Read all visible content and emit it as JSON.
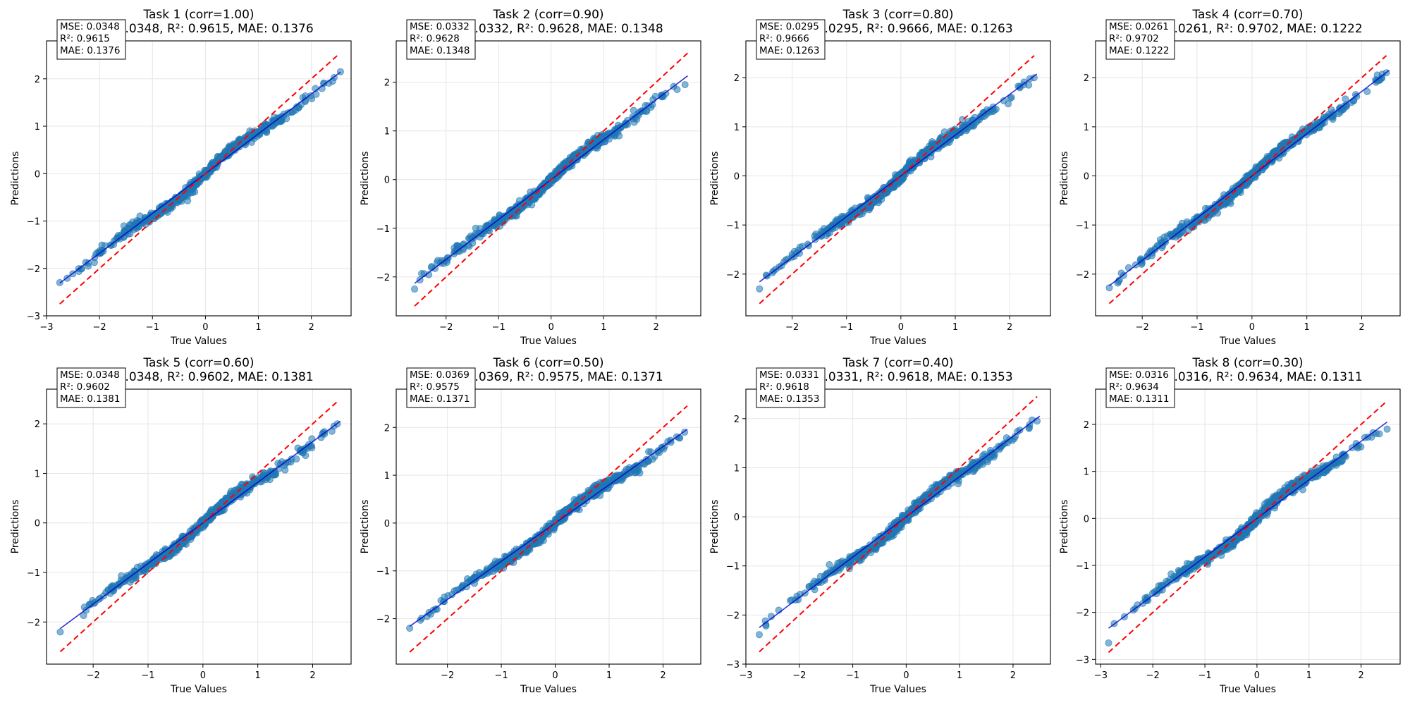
{
  "chart_data": [
    {
      "type": "scatter",
      "title_line1": "Task 1 (corr=1.00)",
      "title_line2": "MSE: 0.0348, R²: 0.9615, MAE: 0.1376",
      "xlabel": "True Values",
      "ylabel": "Predictions",
      "xlim": [
        -3.0,
        2.75
      ],
      "ylim": [
        -3.0,
        2.8
      ],
      "xticks": [
        -3,
        -2,
        -1,
        0,
        1,
        2
      ],
      "yticks": [
        -3,
        -2,
        -1,
        0,
        1,
        2
      ],
      "grid": true,
      "stats_box": [
        "MSE: 0.0348",
        "R²: 0.9615",
        "MAE: 0.1376"
      ],
      "ideal_line": {
        "from": -2.75,
        "to": 2.5
      },
      "fit_line": {
        "slope": 0.84,
        "intercept": 0.0,
        "from": -2.75,
        "to": 2.55
      },
      "scatter_range": [
        -2.75,
        2.55
      ],
      "scatter_endpoints": [
        {
          "x": -2.75,
          "y": -2.3
        },
        {
          "x": 2.55,
          "y": 2.15
        },
        {
          "x": 2.4,
          "y": 1.95
        }
      ],
      "wiggle": 0.12
    },
    {
      "type": "scatter",
      "title_line1": "Task 2 (corr=0.90)",
      "title_line2": "MSE: 0.0332, R²: 0.9628, MAE: 0.1348",
      "xlabel": "True Values",
      "ylabel": "Predictions",
      "xlim": [
        -2.95,
        2.85
      ],
      "ylim": [
        -2.8,
        2.85
      ],
      "xticks": [
        -2,
        -1,
        0,
        1,
        2
      ],
      "yticks": [
        -2,
        -1,
        0,
        1,
        2
      ],
      "grid": true,
      "stats_box": [
        "MSE: 0.0332",
        "R²: 0.9628",
        "MAE: 0.1348"
      ],
      "ideal_line": {
        "from": -2.6,
        "to": 2.6
      },
      "fit_line": {
        "slope": 0.82,
        "intercept": 0.0,
        "from": -2.6,
        "to": 2.6
      },
      "scatter_range": [
        -2.6,
        2.6
      ],
      "scatter_endpoints": [
        {
          "x": -2.6,
          "y": -2.25
        },
        {
          "x": 2.55,
          "y": 1.95
        },
        {
          "x": 2.4,
          "y": 1.85
        }
      ],
      "wiggle": 0.1
    },
    {
      "type": "scatter",
      "title_line1": "Task 3 (corr=0.80)",
      "title_line2": "MSE: 0.0295, R²: 0.9666, MAE: 0.1263",
      "xlabel": "True Values",
      "ylabel": "Predictions",
      "xlim": [
        -2.85,
        2.75
      ],
      "ylim": [
        -2.85,
        2.75
      ],
      "xticks": [
        -2,
        -1,
        0,
        1,
        2
      ],
      "yticks": [
        -2,
        -1,
        0,
        1,
        2
      ],
      "grid": true,
      "stats_box": [
        "MSE: 0.0295",
        "R²: 0.9666",
        "MAE: 0.1263"
      ],
      "ideal_line": {
        "from": -2.6,
        "to": 2.45
      },
      "fit_line": {
        "slope": 0.83,
        "intercept": 0.0,
        "from": -2.6,
        "to": 2.5
      },
      "scatter_range": [
        -2.6,
        2.5
      ],
      "scatter_endpoints": [
        {
          "x": -2.6,
          "y": -2.3
        },
        {
          "x": 2.45,
          "y": 2.0
        },
        {
          "x": 2.35,
          "y": 1.85
        }
      ],
      "wiggle": 0.1
    },
    {
      "type": "scatter",
      "title_line1": "Task 4 (corr=0.70)",
      "title_line2": "MSE: 0.0261, R²: 0.9702, MAE: 0.1222",
      "xlabel": "True Values",
      "ylabel": "Predictions",
      "xlim": [
        -2.85,
        2.7
      ],
      "ylim": [
        -2.85,
        2.75
      ],
      "xticks": [
        -2,
        -1,
        0,
        1,
        2
      ],
      "yticks": [
        -2,
        -1,
        0,
        1,
        2
      ],
      "grid": true,
      "stats_box": [
        "MSE: 0.0261",
        "R²: 0.9702",
        "MAE: 0.1222"
      ],
      "ideal_line": {
        "from": -2.6,
        "to": 2.45
      },
      "fit_line": {
        "slope": 0.86,
        "intercept": 0.0,
        "from": -2.6,
        "to": 2.5
      },
      "scatter_range": [
        -2.6,
        2.5
      ],
      "scatter_endpoints": [
        {
          "x": -2.6,
          "y": -2.28
        },
        {
          "x": 2.45,
          "y": 2.1
        },
        {
          "x": 2.3,
          "y": 1.95
        }
      ],
      "wiggle": 0.1
    },
    {
      "type": "scatter",
      "title_line1": "Task 5 (corr=0.60)",
      "title_line2": "MSE: 0.0348, R²: 0.9602, MAE: 0.1381",
      "xlabel": "True Values",
      "ylabel": "Predictions",
      "xlim": [
        -2.85,
        2.7
      ],
      "ylim": [
        -2.85,
        2.7
      ],
      "xticks": [
        -2,
        -1,
        0,
        1,
        2
      ],
      "yticks": [
        -2,
        -1,
        0,
        1,
        2
      ],
      "grid": true,
      "stats_box": [
        "MSE: 0.0348",
        "R²: 0.9602",
        "MAE: 0.1381"
      ],
      "ideal_line": {
        "from": -2.6,
        "to": 2.45
      },
      "fit_line": {
        "slope": 0.82,
        "intercept": 0.0,
        "from": -2.6,
        "to": 2.5
      },
      "scatter_range": [
        -2.6,
        2.5
      ],
      "scatter_endpoints": [
        {
          "x": -2.6,
          "y": -2.2
        },
        {
          "x": 2.45,
          "y": 2.0
        },
        {
          "x": 2.35,
          "y": 1.85
        }
      ],
      "wiggle": 0.1
    },
    {
      "type": "scatter",
      "title_line1": "Task 6 (corr=0.50)",
      "title_line2": "MSE: 0.0369, R²: 0.9575, MAE: 0.1371",
      "xlabel": "True Values",
      "ylabel": "Predictions",
      "xlim": [
        -2.95,
        2.7
      ],
      "ylim": [
        -2.95,
        2.8
      ],
      "xticks": [
        -2,
        -1,
        0,
        1,
        2
      ],
      "yticks": [
        -2,
        -1,
        0,
        1,
        2
      ],
      "grid": true,
      "stats_box": [
        "MSE: 0.0369",
        "R²: 0.9575",
        "MAE: 0.1371"
      ],
      "ideal_line": {
        "from": -2.7,
        "to": 2.45
      },
      "fit_line": {
        "slope": 0.8,
        "intercept": 0.0,
        "from": -2.7,
        "to": 2.45
      },
      "scatter_range": [
        -2.7,
        2.45
      ],
      "scatter_endpoints": [
        {
          "x": -2.7,
          "y": -2.2
        },
        {
          "x": 2.4,
          "y": 1.9
        },
        {
          "x": 2.3,
          "y": 1.78
        }
      ],
      "wiggle": 0.1
    },
    {
      "type": "scatter",
      "title_line1": "Task 7 (corr=0.40)",
      "title_line2": "MSE: 0.0331, R²: 0.9618, MAE: 0.1353",
      "xlabel": "True Values",
      "ylabel": "Predictions",
      "xlim": [
        -3.0,
        2.7
      ],
      "ylim": [
        -3.0,
        2.6
      ],
      "xticks": [
        -3,
        -2,
        -1,
        0,
        1,
        2
      ],
      "yticks": [
        -3,
        -2,
        -1,
        0,
        1,
        2
      ],
      "grid": true,
      "stats_box": [
        "MSE: 0.0331",
        "R²: 0.9618",
        "MAE: 0.1353"
      ],
      "ideal_line": {
        "from": -2.75,
        "to": 2.45
      },
      "fit_line": {
        "slope": 0.82,
        "intercept": 0.0,
        "from": -2.75,
        "to": 2.5
      },
      "scatter_range": [
        -2.75,
        2.5
      ],
      "scatter_endpoints": [
        {
          "x": -2.75,
          "y": -2.4
        },
        {
          "x": 2.45,
          "y": 1.95
        },
        {
          "x": 2.3,
          "y": 1.8
        }
      ],
      "wiggle": 0.12
    },
    {
      "type": "scatter",
      "title_line1": "Task 8 (corr=0.30)",
      "title_line2": "MSE: 0.0316, R²: 0.9634, MAE: 0.1311",
      "xlabel": "True Values",
      "ylabel": "Predictions",
      "xlim": [
        -3.1,
        2.75
      ],
      "ylim": [
        -3.1,
        2.75
      ],
      "xticks": [
        -3,
        -2,
        -1,
        0,
        1,
        2
      ],
      "yticks": [
        -3,
        -2,
        -1,
        0,
        1,
        2
      ],
      "grid": true,
      "stats_box": [
        "MSE: 0.0316",
        "R²: 0.9634",
        "MAE: 0.1311"
      ],
      "ideal_line": {
        "from": -2.85,
        "to": 2.5
      },
      "fit_line": {
        "slope": 0.82,
        "intercept": 0.0,
        "from": -2.85,
        "to": 2.5
      },
      "scatter_range": [
        -2.85,
        2.5
      ],
      "scatter_endpoints": [
        {
          "x": -2.85,
          "y": -2.65
        },
        {
          "x": 2.5,
          "y": 1.9
        },
        {
          "x": 2.35,
          "y": 1.8
        }
      ],
      "wiggle": 0.12
    }
  ],
  "colors": {
    "points": "#1f77b4",
    "ideal_line": "#ff0000",
    "fit_line": "#0000cc",
    "grid": "#e6e6e6",
    "axes": "#000000",
    "box_border": "#000000",
    "box_fill": "#ffffff"
  }
}
